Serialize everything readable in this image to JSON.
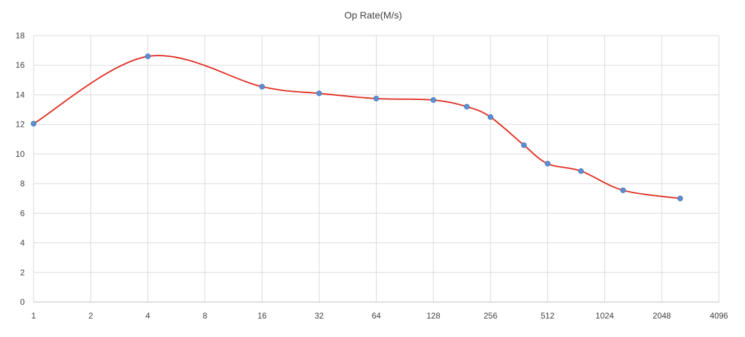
{
  "chart_data": {
    "type": "line",
    "title": "Op Rate(M/s)",
    "xlabel": "",
    "ylabel": "",
    "x_scale": "log2",
    "x_ticks": [
      "1",
      "2",
      "4",
      "8",
      "16",
      "32",
      "64",
      "128",
      "256",
      "512",
      "1024",
      "2048",
      "4096"
    ],
    "x_range": [
      1,
      4096
    ],
    "y_ticks": [
      "0",
      "2",
      "4",
      "6",
      "8",
      "10",
      "12",
      "14",
      "16",
      "18"
    ],
    "ylim": [
      0,
      18
    ],
    "grid": true,
    "legend": "none",
    "smooth": true,
    "series": [
      {
        "color": "#e03428",
        "marker_color": "#5b8fcf",
        "points": [
          {
            "x": 1,
            "y": 12.05
          },
          {
            "x": 4,
            "y": 16.6
          },
          {
            "x": 16,
            "y": 14.55
          },
          {
            "x": 32,
            "y": 14.1
          },
          {
            "x": 64,
            "y": 13.75
          },
          {
            "x": 128,
            "y": 13.65
          },
          {
            "x": 192,
            "y": 13.2
          },
          {
            "x": 256,
            "y": 12.5
          },
          {
            "x": 384,
            "y": 10.6
          },
          {
            "x": 512,
            "y": 9.35
          },
          {
            "x": 768,
            "y": 8.85
          },
          {
            "x": 1280,
            "y": 7.55
          },
          {
            "x": 2560,
            "y": 7.0
          }
        ]
      }
    ]
  }
}
